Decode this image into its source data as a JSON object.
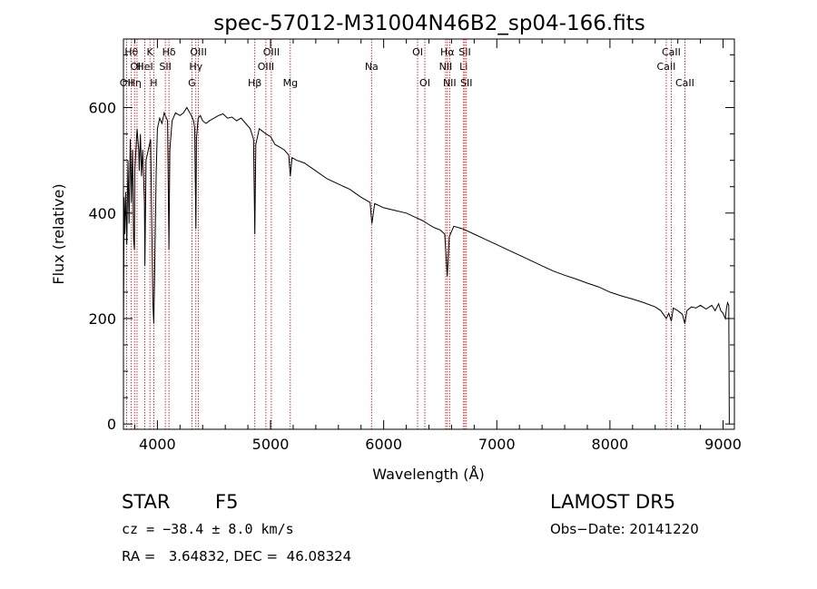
{
  "chart_data": {
    "type": "line",
    "title": "spec-57012-M31004N46B2_sp04-166.fits",
    "xlabel": "Wavelength (Å)",
    "ylabel": "Flux (relative)",
    "xlim": [
      3700,
      9100
    ],
    "ylim": [
      -10,
      730
    ],
    "xticks": [
      4000,
      5000,
      6000,
      7000,
      8000,
      9000
    ],
    "yticks": [
      0,
      200,
      400,
      600
    ],
    "grid": false,
    "series": [
      {
        "x": [
          3700,
          3706,
          3712,
          3720,
          3730,
          3740,
          3750,
          3760,
          3770,
          3780,
          3790,
          3797,
          3800,
          3820,
          3835,
          3840,
          3850,
          3860,
          3870,
          3885,
          3889,
          3900,
          3920,
          3940,
          3960,
          3968,
          3975,
          3990,
          4000,
          4020,
          4040,
          4060,
          4090,
          4102,
          4110,
          4130,
          4160,
          4200,
          4230,
          4260,
          4300,
          4320,
          4330,
          4340,
          4345,
          4360,
          4380,
          4400,
          4430,
          4460,
          4500,
          4540,
          4580,
          4620,
          4660,
          4700,
          4740,
          4780,
          4820,
          4850,
          4861,
          4870,
          4900,
          4930,
          4960,
          5000,
          5040,
          5080,
          5120,
          5160,
          5175,
          5190,
          5230,
          5300,
          5400,
          5500,
          5600,
          5700,
          5800,
          5880,
          5890,
          5896,
          5920,
          6000,
          6100,
          6200,
          6300,
          6350,
          6400,
          6450,
          6500,
          6540,
          6562,
          6580,
          6620,
          6700,
          6800,
          6900,
          7000,
          7100,
          7200,
          7300,
          7400,
          7500,
          7600,
          7700,
          7800,
          7900,
          8000,
          8100,
          8200,
          8300,
          8400,
          8450,
          8498,
          8520,
          8542,
          8560,
          8600,
          8640,
          8662,
          8680,
          8720,
          8760,
          8800,
          8850,
          8900,
          8930,
          8960,
          8980,
          9000,
          9020,
          9030,
          9040,
          9050,
          9055
        ],
        "y": [
          150,
          430,
          360,
          440,
          340,
          500,
          380,
          540,
          420,
          520,
          350,
          330,
          480,
          560,
          520,
          480,
          550,
          470,
          520,
          420,
          300,
          500,
          520,
          540,
          230,
          190,
          280,
          480,
          560,
          580,
          570,
          590,
          575,
          330,
          520,
          575,
          590,
          585,
          590,
          600,
          585,
          575,
          560,
          370,
          540,
          580,
          585,
          575,
          570,
          575,
          580,
          585,
          588,
          580,
          582,
          575,
          580,
          570,
          560,
          540,
          360,
          530,
          560,
          555,
          550,
          545,
          530,
          525,
          520,
          510,
          470,
          505,
          500,
          495,
          480,
          465,
          455,
          445,
          430,
          420,
          395,
          380,
          418,
          410,
          405,
          400,
          390,
          385,
          378,
          372,
          368,
          360,
          280,
          355,
          375,
          370,
          360,
          350,
          340,
          330,
          320,
          310,
          300,
          290,
          282,
          275,
          267,
          260,
          250,
          243,
          237,
          230,
          222,
          215,
          200,
          210,
          195,
          220,
          215,
          208,
          190,
          215,
          222,
          220,
          225,
          218,
          225,
          215,
          228,
          215,
          210,
          200,
          220,
          230,
          225,
          0
        ]
      }
    ],
    "lines": [
      {
        "wave": 3727,
        "labels": [
          "OII"
        ],
        "row": 3
      },
      {
        "wave": 3770,
        "labels": [
          "Hθ"
        ],
        "row": 1
      },
      {
        "wave": 3798,
        "labels": [
          "Hη"
        ],
        "row": 3
      },
      {
        "wave": 3820,
        "labels": [
          "OII"
        ],
        "row": 2
      },
      {
        "wave": 3889,
        "labels": [
          "HeI"
        ],
        "row": 2
      },
      {
        "wave": 3934,
        "labels": [
          "K"
        ],
        "row": 1
      },
      {
        "wave": 3968,
        "labels": [
          "H"
        ],
        "row": 3
      },
      {
        "wave": 4070,
        "labels": [
          "SII"
        ],
        "row": 2
      },
      {
        "wave": 4102,
        "labels": [
          "Hδ"
        ],
        "row": 1
      },
      {
        "wave": 4305,
        "labels": [
          "G"
        ],
        "row": 3
      },
      {
        "wave": 4340,
        "labels": [
          "Hγ"
        ],
        "row": 2
      },
      {
        "wave": 4363,
        "labels": [
          "OIII"
        ],
        "row": 1
      },
      {
        "wave": 4861,
        "labels": [
          "Hβ"
        ],
        "row": 3
      },
      {
        "wave": 4959,
        "labels": [
          "OIII"
        ],
        "row": 2
      },
      {
        "wave": 5007,
        "labels": [
          "OIII"
        ],
        "row": 1
      },
      {
        "wave": 5175,
        "labels": [
          "Mg"
        ],
        "row": 3
      },
      {
        "wave": 5893,
        "labels": [
          "Na"
        ],
        "row": 2
      },
      {
        "wave": 6300,
        "labels": [
          "OI"
        ],
        "row": 1
      },
      {
        "wave": 6364,
        "labels": [
          "OI"
        ],
        "row": 3
      },
      {
        "wave": 6548,
        "labels": [
          "NII"
        ],
        "row": 2
      },
      {
        "wave": 6563,
        "labels": [
          "Hα"
        ],
        "row": 1
      },
      {
        "wave": 6583,
        "labels": [
          "NII"
        ],
        "row": 3
      },
      {
        "wave": 6707,
        "labels": [
          "Li"
        ],
        "row": 2
      },
      {
        "wave": 6717,
        "labels": [
          "SII"
        ],
        "row": 1
      },
      {
        "wave": 6731,
        "labels": [
          "SII"
        ],
        "row": 3
      },
      {
        "wave": 8498,
        "labels": [
          "CaII"
        ],
        "row": 2
      },
      {
        "wave": 8542,
        "labels": [
          "CaII"
        ],
        "row": 1
      },
      {
        "wave": 8662,
        "labels": [
          "CaII"
        ],
        "row": 3
      }
    ],
    "colors": {
      "spectrum": "#000000",
      "lines": "#c00000",
      "axes": "#000000"
    }
  },
  "info": {
    "class_label": "STAR",
    "subclass": "F5",
    "survey": "LAMOST DR5",
    "cz": "cz = −38.4 ± 8.0 km/s",
    "obs_date": "Obs−Date: 20141220",
    "radec": "RA =   3.64832, DEC =  46.08324"
  }
}
